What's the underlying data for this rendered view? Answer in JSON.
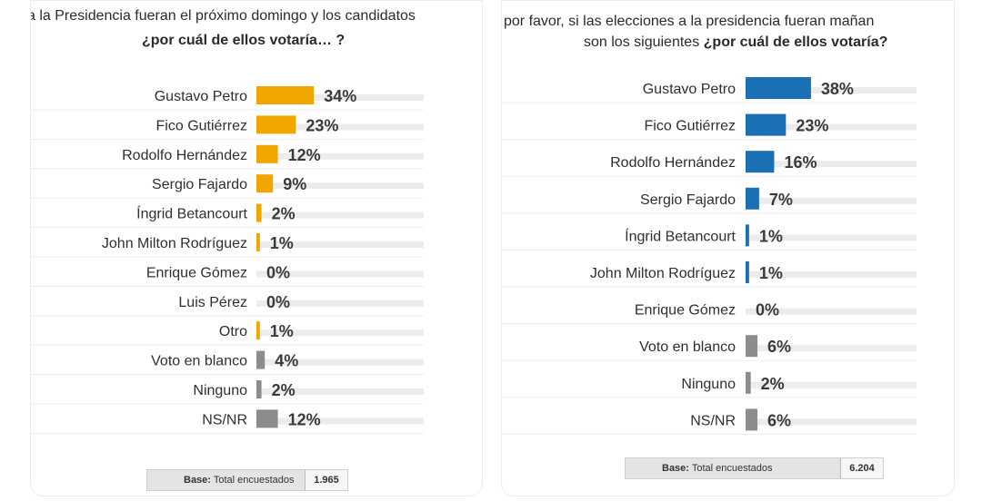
{
  "left": {
    "title_line1": "a la Presidencia fueran el próximo domingo y los candidatos",
    "title_line2": "¿por cuál de ellos votaría… ?",
    "base_label": "Base:",
    "base_text": "Total encuestados",
    "base_count": "1.965"
  },
  "right": {
    "title_line1": "por favor, si las elecciones a la presidencia fueran mañan",
    "title_line2_a": "son los siguientes",
    "title_line2_b": "¿por cuál de ellos votaría?",
    "base_label": "Base:",
    "base_text": "Total encuestados",
    "base_count": "6.204"
  },
  "chart_data": [
    {
      "type": "bar",
      "orientation": "horizontal",
      "categories": [
        "Gustavo Petro",
        "Fico Gutiérrez",
        "Rodolfo Hernández",
        "Sergio Fajardo",
        "Íngrid Betancourt",
        "John Milton Rodríguez",
        "Enrique Gómez",
        "Luis Pérez",
        "Otro",
        "Voto en blanco",
        "Ninguno",
        "NS/NR"
      ],
      "values": [
        34,
        23,
        12,
        9,
        2,
        1,
        0,
        0,
        1,
        4,
        2,
        12
      ],
      "labels": [
        "34%",
        "23%",
        "12%",
        "9%",
        "2%",
        "1%",
        "0%",
        "0%",
        "1%",
        "4%",
        "2%",
        "12%"
      ],
      "colors": [
        "#f0a500",
        "#f0a500",
        "#f0a500",
        "#f0a500",
        "#f0a500",
        "#f0a500",
        "#f0a500",
        "#f0a500",
        "#f0a500",
        "#8c8c8c",
        "#8c8c8c",
        "#8c8c8c"
      ],
      "xlim": [
        0,
        100
      ]
    },
    {
      "type": "bar",
      "orientation": "horizontal",
      "categories": [
        "Gustavo Petro",
        "Fico Gutiérrez",
        "Rodolfo Hernández",
        "Sergio Fajardo",
        "Íngrid Betancourt",
        "John Milton Rodríguez",
        "Enrique Gómez",
        "Voto en blanco",
        "Ninguno",
        "NS/NR"
      ],
      "values": [
        38,
        23,
        16,
        7,
        1,
        1,
        0,
        6,
        2,
        6
      ],
      "labels": [
        "38%",
        "23%",
        "16%",
        "7%",
        "1%",
        "1%",
        "0%",
        "6%",
        "2%",
        "6%"
      ],
      "colors": [
        "#1a6fb5",
        "#1a6fb5",
        "#1a6fb5",
        "#1a6fb5",
        "#1a6fb5",
        "#1a6fb5",
        "#1a6fb5",
        "#8c8c8c",
        "#8c8c8c",
        "#8c8c8c"
      ],
      "xlim": [
        0,
        100
      ]
    }
  ]
}
